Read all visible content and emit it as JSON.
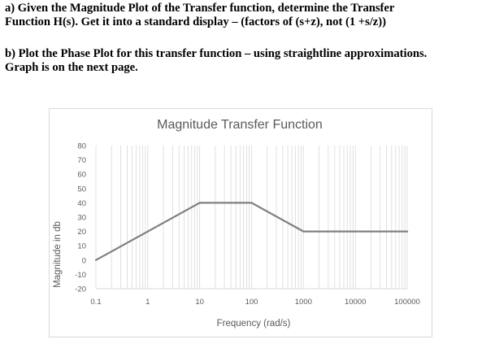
{
  "problem": {
    "part_a": [
      "a) Given the Magnitude Plot of the Transfer function, determine the Transfer",
      "Function H(s). Get it into a standard display – (factors of (s+z), not (1 +s/z))"
    ],
    "part_b": [
      "b) Plot the Phase Plot for this transfer function – using straightline approximations.",
      "Graph is on the next page."
    ]
  },
  "chart_data": {
    "type": "line",
    "title": "Magnitude Transfer Function",
    "xlabel": "Frequency (rad/s)",
    "ylabel": "Magnitude in db",
    "x_scale": "log",
    "xlim": [
      0.1,
      100000
    ],
    "ylim": [
      -20,
      80
    ],
    "x_ticks": [
      "0.1",
      "1",
      "10",
      "100",
      "1000",
      "10000",
      "100000"
    ],
    "y_ticks": [
      "80",
      "70",
      "60",
      "50",
      "40",
      "30",
      "20",
      "10",
      "0",
      "-10",
      "-20"
    ],
    "grid": "log-minor vertical gridlines",
    "series": [
      {
        "x": [
          0.1,
          10,
          100,
          1000,
          100000
        ],
        "y": [
          0,
          40,
          40,
          20,
          20
        ]
      }
    ],
    "colors": {
      "line": "#808080",
      "grid": "#d9d9d9",
      "text": "#595959"
    }
  }
}
